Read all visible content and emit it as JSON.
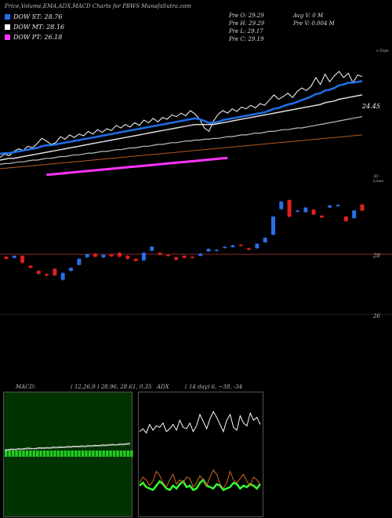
{
  "page_title": "Price,Volume,EMA,ADX,MACD Charts for PBWS MunafaSutra.com",
  "legend": [
    {
      "label": "DOW ST: 28.76",
      "color": "#1e6fe8"
    },
    {
      "label": "DOW MT: 28.16",
      "color": "#ffffff"
    },
    {
      "label": "DOW PT: 26.18",
      "color": "#ff33ff"
    }
  ],
  "info": {
    "prev_open": "Pre   O: 29.29",
    "prev_high": "Pre   H: 29.29",
    "prev_low": "Pre   L: 29.17",
    "prev_close": "Pre   C: 29.19",
    "avg_vol": "Avg V: 0   M",
    "prev_vol": "Pre   V: 0.004   M"
  },
  "upper_corner_label": "x-Tops",
  "lower_corner_label": "30 - Lows",
  "last_price_label": "24.45",
  "macd_label": "MACD:",
  "macd_values": "( 12,26,9 ) 28.96,  28.61,  0.35",
  "adx_label": "ADX",
  "adx_values": "( 14  day) 6,  ~38,  -34",
  "chart_data": [
    {
      "type": "line",
      "name": "price-ema-panel",
      "x": [
        0,
        1,
        2,
        3,
        4,
        5,
        6,
        7,
        8,
        9,
        10,
        11,
        12,
        13,
        14,
        15,
        16,
        17,
        18,
        19,
        20,
        21,
        22,
        23,
        24,
        25,
        26,
        27,
        28,
        29,
        30,
        31,
        32,
        33,
        34,
        35,
        36,
        37,
        38,
        39,
        40,
        41,
        42,
        43,
        44,
        45,
        46,
        47,
        48,
        49,
        50,
        51,
        52,
        53,
        54,
        55,
        56,
        57,
        58,
        59,
        60,
        61,
        62,
        63,
        64,
        65,
        66,
        67,
        68,
        69,
        70,
        71,
        72,
        73,
        74,
        75,
        76,
        77,
        78
      ],
      "series": [
        {
          "name": "Price",
          "color": "#ffffff",
          "values": [
            20.2,
            20.6,
            20.4,
            20.9,
            21.2,
            21.0,
            21.5,
            21.3,
            21.8,
            22.4,
            22.1,
            21.7,
            21.9,
            22.6,
            22.3,
            22.8,
            22.5,
            22.9,
            22.7,
            23.2,
            22.9,
            23.4,
            23.1,
            23.5,
            23.3,
            23.9,
            23.6,
            24.0,
            23.7,
            24.2,
            23.9,
            24.5,
            24.2,
            24.7,
            24.3,
            24.8,
            24.6,
            25.1,
            24.9,
            25.3,
            25.0,
            25.6,
            25.2,
            24.6,
            23.6,
            23.2,
            24.4,
            25.2,
            25.6,
            25.3,
            25.8,
            25.5,
            26.0,
            25.8,
            26.2,
            25.9,
            26.4,
            26.2,
            26.8,
            27.4,
            26.9,
            27.2,
            27.6,
            27.1,
            27.8,
            28.2,
            27.9,
            28.4,
            29.4,
            28.6,
            29.8,
            28.9,
            29.6,
            30.1,
            29.4,
            29.9,
            28.8,
            29.7,
            29.5
          ]
        },
        {
          "name": "EMA fast",
          "color": "#1e6fe8",
          "values": [
            20.6,
            20.7,
            20.7,
            20.8,
            20.9,
            21.0,
            21.1,
            21.2,
            21.3,
            21.5,
            21.6,
            21.6,
            21.7,
            21.8,
            21.9,
            22.0,
            22.1,
            22.2,
            22.3,
            22.4,
            22.5,
            22.6,
            22.7,
            22.8,
            22.9,
            23.0,
            23.1,
            23.2,
            23.3,
            23.4,
            23.5,
            23.6,
            23.7,
            23.8,
            23.9,
            24.0,
            24.1,
            24.2,
            24.3,
            24.4,
            24.5,
            24.6,
            24.7,
            24.6,
            24.4,
            24.2,
            24.2,
            24.3,
            24.5,
            24.6,
            24.7,
            24.8,
            24.9,
            25.0,
            25.1,
            25.2,
            25.3,
            25.4,
            25.6,
            25.8,
            25.9,
            26.1,
            26.3,
            26.4,
            26.6,
            26.8,
            27.0,
            27.2,
            27.5,
            27.6,
            27.9,
            28.0,
            28.2,
            28.5,
            28.6,
            28.8,
            28.8,
            28.9,
            29.0
          ]
        },
        {
          "name": "EMA mid",
          "color": "#dddddd",
          "values": [
            19.9,
            20.0,
            20.1,
            20.1,
            20.2,
            20.3,
            20.4,
            20.5,
            20.6,
            20.7,
            20.8,
            20.9,
            21.0,
            21.1,
            21.2,
            21.3,
            21.4,
            21.5,
            21.6,
            21.7,
            21.8,
            21.9,
            22.0,
            22.1,
            22.2,
            22.3,
            22.4,
            22.5,
            22.6,
            22.7,
            22.8,
            22.9,
            23.0,
            23.1,
            23.2,
            23.3,
            23.4,
            23.5,
            23.6,
            23.7,
            23.8,
            23.9,
            24.0,
            24.0,
            24.0,
            24.0,
            24.0,
            24.1,
            24.2,
            24.3,
            24.4,
            24.5,
            24.6,
            24.7,
            24.8,
            24.9,
            25.0,
            25.1,
            25.2,
            25.3,
            25.4,
            25.5,
            25.6,
            25.7,
            25.8,
            25.9,
            26.0,
            26.1,
            26.2,
            26.3,
            26.5,
            26.6,
            26.7,
            26.9,
            27.0,
            27.1,
            27.2,
            27.3,
            27.4
          ]
        },
        {
          "name": "EMA slow",
          "color": "#bbbbbb",
          "values": [
            19.4,
            19.5,
            19.5,
            19.6,
            19.7,
            19.7,
            19.8,
            19.9,
            19.9,
            20.0,
            20.1,
            20.1,
            20.2,
            20.3,
            20.3,
            20.4,
            20.5,
            20.5,
            20.6,
            20.7,
            20.7,
            20.8,
            20.9,
            20.9,
            21.0,
            21.1,
            21.1,
            21.2,
            21.3,
            21.3,
            21.4,
            21.5,
            21.5,
            21.6,
            21.7,
            21.7,
            21.8,
            21.9,
            21.9,
            22.0,
            22.1,
            22.1,
            22.2,
            22.2,
            22.3,
            22.3,
            22.4,
            22.4,
            22.5,
            22.6,
            22.6,
            22.7,
            22.8,
            22.8,
            22.9,
            23.0,
            23.0,
            23.1,
            23.2,
            23.2,
            23.3,
            23.4,
            23.4,
            23.5,
            23.6,
            23.6,
            23.7,
            23.8,
            23.9,
            24.0,
            24.1,
            24.2,
            24.3,
            24.4,
            24.5,
            24.6,
            24.7,
            24.8,
            24.9
          ]
        },
        {
          "name": "EMA long",
          "color": "#b85a1c",
          "values": [
            18.9,
            18.95,
            19.0,
            19.05,
            19.1,
            19.15,
            19.2,
            19.25,
            19.3,
            19.35,
            19.4,
            19.45,
            19.5,
            19.55,
            19.6,
            19.65,
            19.7,
            19.75,
            19.8,
            19.85,
            19.9,
            19.95,
            20.0,
            20.05,
            20.1,
            20.15,
            20.2,
            20.25,
            20.3,
            20.35,
            20.4,
            20.45,
            20.5,
            20.55,
            20.6,
            20.65,
            20.7,
            20.75,
            20.8,
            20.85,
            20.9,
            20.95,
            21.0,
            21.05,
            21.1,
            21.15,
            21.2,
            21.25,
            21.3,
            21.35,
            21.4,
            21.45,
            21.5,
            21.55,
            21.6,
            21.65,
            21.7,
            21.75,
            21.8,
            21.85,
            21.9,
            21.95,
            22.0,
            22.05,
            22.1,
            22.15,
            22.2,
            22.25,
            22.3,
            22.35,
            22.4,
            22.45,
            22.5,
            22.55,
            22.6,
            22.65,
            22.7,
            22.75,
            22.8
          ]
        },
        {
          "name": "DOW PT",
          "color": "#ff33ff",
          "values": [
            null,
            null,
            null,
            null,
            null,
            null,
            null,
            null,
            null,
            null,
            18.2,
            18.25,
            18.3,
            18.35,
            18.4,
            18.45,
            18.5,
            18.55,
            18.6,
            18.65,
            18.7,
            18.75,
            18.8,
            18.85,
            18.9,
            18.95,
            19.0,
            19.05,
            19.1,
            19.15,
            19.2,
            19.25,
            19.3,
            19.35,
            19.4,
            19.45,
            19.5,
            19.55,
            19.6,
            19.65,
            19.7,
            19.75,
            19.8,
            19.85,
            19.9,
            19.95,
            20.0,
            20.05,
            20.1,
            20.15,
            null,
            null,
            null,
            null,
            null,
            null,
            null,
            null,
            null,
            null,
            null,
            null,
            null,
            null,
            null,
            null,
            null,
            null,
            null,
            null,
            null,
            null,
            null,
            null,
            null,
            null,
            null,
            null,
            null
          ]
        }
      ]
    },
    {
      "type": "candlestick",
      "name": "price-candles",
      "y_ticks": [
        28,
        26
      ],
      "ylim": [
        25.5,
        30.5
      ],
      "reference_line": 28,
      "candles": [
        {
          "o": 27.85,
          "c": 27.92,
          "dir": "down"
        },
        {
          "o": 27.88,
          "c": 27.95,
          "dir": "up"
        },
        {
          "o": 27.95,
          "c": 27.72,
          "dir": "down"
        },
        {
          "o": 27.62,
          "c": 27.55,
          "dir": "down"
        },
        {
          "o": 27.45,
          "c": 27.35,
          "dir": "down"
        },
        {
          "o": 27.35,
          "c": 27.3,
          "dir": "down"
        },
        {
          "o": 27.52,
          "c": 27.3,
          "dir": "down"
        },
        {
          "o": 27.15,
          "c": 27.38,
          "dir": "up"
        },
        {
          "o": 27.45,
          "c": 27.55,
          "dir": "up"
        },
        {
          "o": 27.65,
          "c": 27.85,
          "dir": "up"
        },
        {
          "o": 27.9,
          "c": 28.0,
          "dir": "up"
        },
        {
          "o": 28.02,
          "c": 27.92,
          "dir": "down"
        },
        {
          "o": 27.9,
          "c": 27.98,
          "dir": "up"
        },
        {
          "o": 28.0,
          "c": 27.93,
          "dir": "down"
        },
        {
          "o": 28.05,
          "c": 27.92,
          "dir": "down"
        },
        {
          "o": 27.95,
          "c": 27.85,
          "dir": "down"
        },
        {
          "o": 27.85,
          "c": 27.78,
          "dir": "down"
        },
        {
          "o": 27.8,
          "c": 28.05,
          "dir": "up"
        },
        {
          "o": 28.12,
          "c": 28.25,
          "dir": "up"
        },
        {
          "o": 28.05,
          "c": 27.98,
          "dir": "down"
        },
        {
          "o": 27.98,
          "c": 27.95,
          "dir": "down"
        },
        {
          "o": 27.9,
          "c": 27.82,
          "dir": "down"
        },
        {
          "o": 27.95,
          "c": 27.88,
          "dir": "down"
        },
        {
          "o": 27.92,
          "c": 27.88,
          "dir": "down"
        },
        {
          "o": 27.95,
          "c": 28.02,
          "dir": "up"
        },
        {
          "o": 28.1,
          "c": 28.18,
          "dir": "up"
        },
        {
          "o": 28.12,
          "c": 28.15,
          "dir": "up"
        },
        {
          "o": 28.22,
          "c": 28.25,
          "dir": "up"
        },
        {
          "o": 28.24,
          "c": 28.3,
          "dir": "up"
        },
        {
          "o": 28.28,
          "c": 28.32,
          "dir": "down"
        },
        {
          "o": 28.2,
          "c": 28.15,
          "dir": "down"
        },
        {
          "o": 28.2,
          "c": 28.35,
          "dir": "up"
        },
        {
          "o": 28.4,
          "c": 28.55,
          "dir": "up"
        },
        {
          "o": 28.65,
          "c": 29.25,
          "dir": "up"
        },
        {
          "o": 29.5,
          "c": 29.75,
          "dir": "up"
        },
        {
          "o": 29.8,
          "c": 29.25,
          "dir": "down"
        },
        {
          "o": 29.45,
          "c": 29.42,
          "dir": "up"
        },
        {
          "o": 29.55,
          "c": 29.4,
          "dir": "up"
        },
        {
          "o": 29.48,
          "c": 29.32,
          "dir": "down"
        },
        {
          "o": 29.28,
          "c": 29.22,
          "dir": "down"
        },
        {
          "o": 29.55,
          "c": 29.62,
          "dir": "up"
        },
        {
          "o": 29.6,
          "c": 29.64,
          "dir": "up"
        },
        {
          "o": 29.25,
          "c": 29.1,
          "dir": "down"
        },
        {
          "o": 29.2,
          "c": 29.45,
          "dir": "up"
        },
        {
          "o": 29.45,
          "c": 29.65,
          "dir": "down"
        }
      ]
    },
    {
      "type": "line",
      "name": "macd",
      "series": [
        {
          "name": "MACD",
          "color": "#ffffff",
          "values": [
            0.02,
            0.03,
            0.05,
            0.04,
            0.06,
            0.05,
            0.07,
            0.08,
            0.06,
            0.07,
            0.09,
            0.08,
            0.1,
            0.09,
            0.11,
            0.1,
            0.12,
            0.11,
            0.13,
            0.12,
            0.14,
            0.13,
            0.15,
            0.14,
            0.16,
            0.15,
            0.17,
            0.16,
            0.18,
            0.17,
            0.19,
            0.2,
            0.18,
            0.21,
            0.2,
            0.22,
            0.23
          ]
        },
        {
          "name": "Signal",
          "color": "#bbbbbb",
          "values": [
            0.0,
            0.01,
            0.02,
            0.02,
            0.03,
            0.03,
            0.04,
            0.05,
            0.05,
            0.05,
            0.06,
            0.06,
            0.07,
            0.07,
            0.08,
            0.08,
            0.09,
            0.09,
            0.1,
            0.1,
            0.11,
            0.11,
            0.12,
            0.12,
            0.13,
            0.13,
            0.14,
            0.14,
            0.15,
            0.15,
            0.16,
            0.17,
            0.17,
            0.18,
            0.18,
            0.19,
            0.2
          ]
        }
      ]
    },
    {
      "type": "line",
      "name": "adx",
      "series": [
        {
          "name": "ADX",
          "color": "#ffffff",
          "values": [
            58,
            60,
            57,
            63,
            59,
            62,
            61,
            64,
            58,
            60,
            63,
            59,
            66,
            61,
            60,
            64,
            58,
            62,
            70,
            65,
            60,
            67,
            72,
            68,
            63,
            58,
            66,
            70,
            61,
            59,
            69,
            64,
            62,
            71,
            66,
            68,
            63
          ]
        },
        {
          "name": "+DI",
          "color": "#33ff33",
          "values": [
            20,
            22,
            19,
            18,
            17,
            20,
            23,
            21,
            18,
            17,
            20,
            18,
            21,
            23,
            19,
            20,
            17,
            18,
            22,
            24,
            20,
            19,
            18,
            21,
            20,
            17,
            18,
            19,
            22,
            21,
            18,
            20,
            19,
            21,
            20,
            18,
            21
          ]
        },
        {
          "name": "-DI",
          "color": "#d2691e",
          "values": [
            22,
            26,
            24,
            20,
            23,
            30,
            27,
            22,
            19,
            24,
            28,
            21,
            24,
            22,
            26,
            25,
            19,
            22,
            27,
            24,
            20,
            26,
            31,
            28,
            21,
            18,
            22,
            30,
            24,
            22,
            25,
            28,
            23,
            20,
            26,
            24,
            21
          ]
        }
      ]
    }
  ]
}
